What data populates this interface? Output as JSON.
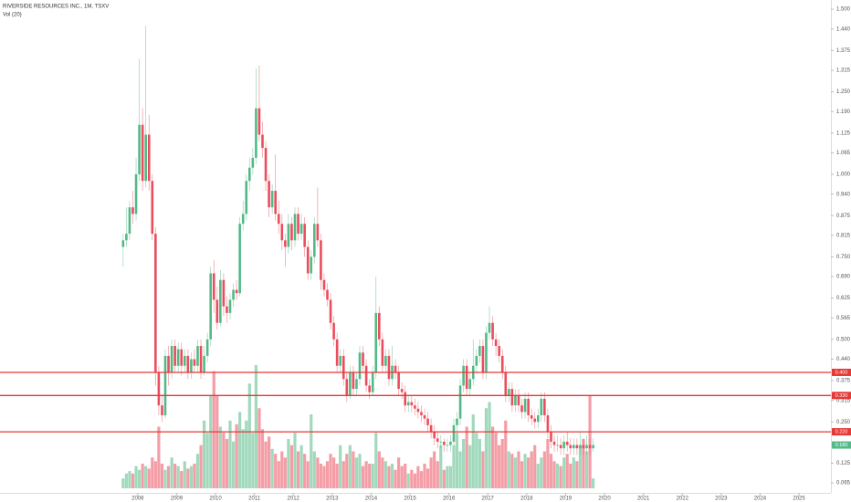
{
  "chart_data": {
    "type": "candlestick",
    "title": "RIVERSIDE RESOURCES INC., 1M, TSXV",
    "subtitle": "Vol (20)",
    "x": [
      "2007-08",
      "2007-09",
      "2007-10",
      "2007-11",
      "2007-12",
      "2008-01",
      "2008-02",
      "2008-03",
      "2008-04",
      "2008-05",
      "2008-06",
      "2008-07",
      "2008-08",
      "2008-09",
      "2008-10",
      "2008-11",
      "2008-12",
      "2009-01",
      "2009-02",
      "2009-03",
      "2009-04",
      "2009-05",
      "2009-06",
      "2009-07",
      "2009-08",
      "2009-09",
      "2009-10",
      "2009-11",
      "2009-12",
      "2010-01",
      "2010-02",
      "2010-03",
      "2010-04",
      "2010-05",
      "2010-06",
      "2010-07",
      "2010-08",
      "2010-09",
      "2010-10",
      "2010-11",
      "2010-12",
      "2011-01",
      "2011-02",
      "2011-03",
      "2011-04",
      "2011-05",
      "2011-06",
      "2011-07",
      "2011-08",
      "2011-09",
      "2011-10",
      "2011-11",
      "2011-12",
      "2012-01",
      "2012-02",
      "2012-03",
      "2012-04",
      "2012-05",
      "2012-06",
      "2012-07",
      "2012-08",
      "2012-09",
      "2012-10",
      "2012-11",
      "2012-12",
      "2013-01",
      "2013-02",
      "2013-03",
      "2013-04",
      "2013-05",
      "2013-06",
      "2013-07",
      "2013-08",
      "2013-09",
      "2013-10",
      "2013-11",
      "2013-12",
      "2014-01",
      "2014-02",
      "2014-03",
      "2014-04",
      "2014-05",
      "2014-06",
      "2014-07",
      "2014-08",
      "2014-09",
      "2014-10",
      "2014-11",
      "2014-12",
      "2015-01",
      "2015-02",
      "2015-03",
      "2015-04",
      "2015-05",
      "2015-06",
      "2015-07",
      "2015-08",
      "2015-09",
      "2015-10",
      "2015-11",
      "2015-12",
      "2016-01",
      "2016-02",
      "2016-03",
      "2016-04",
      "2016-05",
      "2016-06",
      "2016-07",
      "2016-08",
      "2016-09",
      "2016-10",
      "2016-11",
      "2016-12",
      "2017-01",
      "2017-02",
      "2017-03",
      "2017-04",
      "2017-05",
      "2017-06",
      "2017-07",
      "2017-08",
      "2017-09",
      "2017-10",
      "2017-11",
      "2017-12",
      "2018-01",
      "2018-02",
      "2018-03",
      "2018-04",
      "2018-05",
      "2018-06",
      "2018-07",
      "2018-08",
      "2018-09",
      "2018-10",
      "2018-11",
      "2018-12",
      "2019-01",
      "2019-02",
      "2019-03",
      "2019-04",
      "2019-05",
      "2019-06",
      "2019-07",
      "2019-08",
      "2019-09"
    ],
    "open": [
      0.78,
      0.8,
      0.82,
      0.9,
      0.88,
      1.0,
      1.15,
      0.98,
      1.12,
      0.98,
      0.82,
      0.4,
      0.3,
      0.27,
      0.45,
      0.4,
      0.48,
      0.42,
      0.47,
      0.42,
      0.45,
      0.4,
      0.44,
      0.42,
      0.48,
      0.4,
      0.45,
      0.5,
      0.7,
      0.62,
      0.55,
      0.68,
      0.6,
      0.58,
      0.62,
      0.65,
      0.64,
      0.85,
      0.88,
      0.98,
      1.02,
      1.05,
      1.2,
      1.12,
      1.08,
      0.98,
      0.9,
      0.95,
      0.88,
      0.85,
      0.8,
      0.78,
      0.85,
      0.8,
      0.88,
      0.82,
      0.85,
      0.78,
      0.7,
      0.75,
      0.85,
      0.8,
      0.68,
      0.65,
      0.62,
      0.55,
      0.5,
      0.42,
      0.45,
      0.38,
      0.33,
      0.4,
      0.35,
      0.38,
      0.46,
      0.42,
      0.36,
      0.34,
      0.4,
      0.58,
      0.5,
      0.42,
      0.45,
      0.38,
      0.42,
      0.4,
      0.35,
      0.34,
      0.3,
      0.31,
      0.3,
      0.29,
      0.28,
      0.27,
      0.26,
      0.24,
      0.22,
      0.2,
      0.19,
      0.19,
      0.18,
      0.18,
      0.19,
      0.24,
      0.26,
      0.36,
      0.42,
      0.35,
      0.38,
      0.42,
      0.45,
      0.48,
      0.4,
      0.52,
      0.55,
      0.5,
      0.48,
      0.45,
      0.4,
      0.33,
      0.35,
      0.3,
      0.33,
      0.3,
      0.28,
      0.32,
      0.27,
      0.26,
      0.25,
      0.27,
      0.32,
      0.27,
      0.22,
      0.19,
      0.18,
      0.18,
      0.17,
      0.19,
      0.18,
      0.17,
      0.18,
      0.17,
      0.18,
      0.17,
      0.18,
      0.17
    ],
    "high": [
      0.82,
      0.9,
      0.92,
      0.95,
      1.05,
      1.35,
      1.2,
      1.45,
      1.18,
      1.0,
      0.84,
      0.42,
      0.33,
      0.47,
      0.48,
      0.5,
      0.5,
      0.49,
      0.49,
      0.47,
      0.47,
      0.46,
      0.47,
      0.5,
      0.5,
      0.48,
      0.52,
      0.72,
      0.74,
      0.66,
      0.71,
      0.7,
      0.63,
      0.64,
      0.67,
      0.68,
      0.87,
      0.92,
      1.0,
      1.05,
      1.08,
      1.32,
      1.33,
      1.16,
      1.1,
      1.0,
      0.97,
      1.06,
      0.92,
      0.88,
      0.82,
      0.88,
      0.87,
      0.9,
      0.9,
      0.88,
      0.87,
      0.8,
      0.77,
      0.87,
      0.96,
      0.82,
      0.7,
      0.67,
      0.64,
      0.57,
      0.52,
      0.47,
      0.47,
      0.4,
      0.42,
      0.42,
      0.4,
      0.48,
      0.48,
      0.44,
      0.38,
      0.42,
      0.69,
      0.6,
      0.52,
      0.47,
      0.47,
      0.48,
      0.44,
      0.42,
      0.37,
      0.36,
      0.33,
      0.33,
      0.32,
      0.31,
      0.3,
      0.29,
      0.28,
      0.26,
      0.24,
      0.22,
      0.21,
      0.2,
      0.2,
      0.21,
      0.26,
      0.28,
      0.38,
      0.44,
      0.44,
      0.4,
      0.5,
      0.47,
      0.5,
      0.5,
      0.54,
      0.6,
      0.57,
      0.52,
      0.5,
      0.47,
      0.42,
      0.37,
      0.37,
      0.35,
      0.35,
      0.32,
      0.34,
      0.34,
      0.29,
      0.28,
      0.29,
      0.34,
      0.34,
      0.29,
      0.24,
      0.21,
      0.21,
      0.2,
      0.21,
      0.22,
      0.2,
      0.2,
      0.2,
      0.22,
      0.2,
      0.21,
      0.2,
      0.2
    ],
    "low": [
      0.72,
      0.78,
      0.8,
      0.85,
      0.86,
      0.98,
      0.95,
      0.96,
      0.95,
      0.8,
      0.36,
      0.27,
      0.25,
      0.26,
      0.36,
      0.38,
      0.4,
      0.4,
      0.39,
      0.4,
      0.38,
      0.38,
      0.4,
      0.4,
      0.38,
      0.39,
      0.43,
      0.48,
      0.58,
      0.53,
      0.54,
      0.57,
      0.55,
      0.56,
      0.6,
      0.62,
      0.63,
      0.83,
      0.86,
      0.95,
      1.0,
      1.03,
      1.1,
      1.05,
      0.95,
      0.87,
      0.88,
      0.86,
      0.82,
      0.77,
      0.72,
      0.76,
      0.77,
      0.78,
      0.8,
      0.8,
      0.75,
      0.68,
      0.68,
      0.73,
      0.78,
      0.65,
      0.63,
      0.6,
      0.53,
      0.48,
      0.4,
      0.4,
      0.36,
      0.31,
      0.32,
      0.33,
      0.33,
      0.36,
      0.4,
      0.34,
      0.32,
      0.33,
      0.38,
      0.48,
      0.4,
      0.4,
      0.36,
      0.36,
      0.38,
      0.33,
      0.32,
      0.28,
      0.28,
      0.28,
      0.27,
      0.26,
      0.25,
      0.24,
      0.22,
      0.2,
      0.18,
      0.17,
      0.17,
      0.16,
      0.16,
      0.16,
      0.18,
      0.22,
      0.24,
      0.34,
      0.33,
      0.33,
      0.36,
      0.4,
      0.43,
      0.38,
      0.38,
      0.5,
      0.48,
      0.45,
      0.43,
      0.38,
      0.31,
      0.31,
      0.28,
      0.28,
      0.28,
      0.26,
      0.26,
      0.25,
      0.24,
      0.23,
      0.23,
      0.25,
      0.25,
      0.2,
      0.17,
      0.16,
      0.16,
      0.15,
      0.15,
      0.16,
      0.15,
      0.15,
      0.15,
      0.15,
      0.15,
      0.15,
      0.15,
      0.16
    ],
    "close": [
      0.8,
      0.82,
      0.9,
      0.88,
      1.0,
      1.15,
      0.98,
      1.12,
      0.98,
      0.82,
      0.4,
      0.3,
      0.27,
      0.45,
      0.4,
      0.48,
      0.42,
      0.47,
      0.42,
      0.45,
      0.4,
      0.44,
      0.42,
      0.48,
      0.4,
      0.45,
      0.5,
      0.7,
      0.62,
      0.55,
      0.68,
      0.6,
      0.58,
      0.62,
      0.65,
      0.64,
      0.85,
      0.88,
      0.98,
      1.02,
      1.05,
      1.2,
      1.12,
      1.08,
      0.98,
      0.9,
      0.95,
      0.88,
      0.85,
      0.8,
      0.78,
      0.85,
      0.8,
      0.88,
      0.82,
      0.85,
      0.78,
      0.7,
      0.75,
      0.85,
      0.8,
      0.68,
      0.65,
      0.62,
      0.55,
      0.5,
      0.42,
      0.45,
      0.38,
      0.33,
      0.4,
      0.35,
      0.38,
      0.46,
      0.42,
      0.36,
      0.34,
      0.4,
      0.58,
      0.5,
      0.42,
      0.45,
      0.38,
      0.42,
      0.4,
      0.35,
      0.34,
      0.3,
      0.31,
      0.3,
      0.29,
      0.28,
      0.27,
      0.26,
      0.24,
      0.22,
      0.2,
      0.19,
      0.19,
      0.18,
      0.18,
      0.19,
      0.24,
      0.26,
      0.36,
      0.42,
      0.35,
      0.38,
      0.42,
      0.45,
      0.48,
      0.4,
      0.52,
      0.55,
      0.5,
      0.48,
      0.45,
      0.4,
      0.33,
      0.35,
      0.3,
      0.33,
      0.3,
      0.28,
      0.32,
      0.27,
      0.26,
      0.25,
      0.27,
      0.32,
      0.27,
      0.22,
      0.19,
      0.18,
      0.18,
      0.17,
      0.19,
      0.18,
      0.17,
      0.18,
      0.17,
      0.18,
      0.17,
      0.18,
      0.17,
      0.18
    ],
    "volume": [
      8,
      12,
      14,
      12,
      18,
      15,
      20,
      18,
      16,
      25,
      22,
      50,
      20,
      15,
      18,
      25,
      20,
      18,
      14,
      22,
      16,
      18,
      20,
      28,
      35,
      55,
      45,
      75,
      95,
      75,
      50,
      45,
      40,
      55,
      38,
      52,
      62,
      48,
      55,
      85,
      45,
      100,
      65,
      48,
      38,
      42,
      32,
      28,
      22,
      30,
      25,
      40,
      35,
      45,
      30,
      35,
      28,
      22,
      60,
      30,
      25,
      20,
      18,
      22,
      28,
      25,
      20,
      35,
      22,
      28,
      35,
      30,
      25,
      28,
      18,
      22,
      20,
      20,
      45,
      30,
      25,
      22,
      18,
      20,
      15,
      25,
      18,
      20,
      12,
      15,
      12,
      18,
      14,
      20,
      16,
      25,
      30,
      22,
      35,
      15,
      18,
      18,
      35,
      45,
      30,
      40,
      50,
      35,
      60,
      45,
      40,
      30,
      65,
      70,
      50,
      45,
      35,
      40,
      55,
      30,
      28,
      25,
      30,
      22,
      28,
      25,
      30,
      35,
      20,
      25,
      30,
      40,
      28,
      22,
      20,
      18,
      25,
      28,
      20,
      25,
      22,
      35,
      40,
      30,
      75,
      8
    ],
    "up_color": "#53b987",
    "down_color": "#eb4d5c",
    "ylim": [
      0.035,
      1.528
    ],
    "yticks": [
      {
        "value": 1.5,
        "label": "1.500"
      },
      {
        "value": 1.44,
        "label": "1.440"
      },
      {
        "value": 1.375,
        "label": "1.375"
      },
      {
        "value": 1.315,
        "label": "1.315"
      },
      {
        "value": 1.25,
        "label": "1.250"
      },
      {
        "value": 1.19,
        "label": "1.190"
      },
      {
        "value": 1.125,
        "label": "1.125"
      },
      {
        "value": 1.065,
        "label": "1.065"
      },
      {
        "value": 1.0,
        "label": "1.000"
      },
      {
        "value": 0.94,
        "label": "0.940"
      },
      {
        "value": 0.875,
        "label": "0.875"
      },
      {
        "value": 0.815,
        "label": "0.815"
      },
      {
        "value": 0.75,
        "label": "0.750"
      },
      {
        "value": 0.69,
        "label": "0.690"
      },
      {
        "value": 0.625,
        "label": "0.625"
      },
      {
        "value": 0.565,
        "label": "0.565"
      },
      {
        "value": 0.5,
        "label": "0.500"
      },
      {
        "value": 0.44,
        "label": "0.440"
      },
      {
        "value": 0.375,
        "label": "0.375"
      },
      {
        "value": 0.315,
        "label": "0.315"
      },
      {
        "value": 0.25,
        "label": "0.250"
      },
      {
        "value": 0.125,
        "label": "0.125"
      },
      {
        "value": 0.065,
        "label": "0.065"
      }
    ],
    "xlim": [
      2004.46,
      2025.82
    ],
    "xticks": [
      2008,
      2009,
      2010,
      2011,
      2012,
      2013,
      2014,
      2015,
      2016,
      2017,
      2018,
      2019,
      2020,
      2021,
      2022,
      2023,
      2024,
      2025
    ],
    "levels": [
      {
        "value": 0.4,
        "label": "0.400"
      },
      {
        "value": 0.33,
        "label": "0.330"
      },
      {
        "value": 0.22,
        "label": "0.220"
      }
    ],
    "level_color": "#e53935",
    "price_label": {
      "value": 0.18,
      "label": "0.180"
    },
    "volume_ylim": [
      0,
      100
    ]
  }
}
